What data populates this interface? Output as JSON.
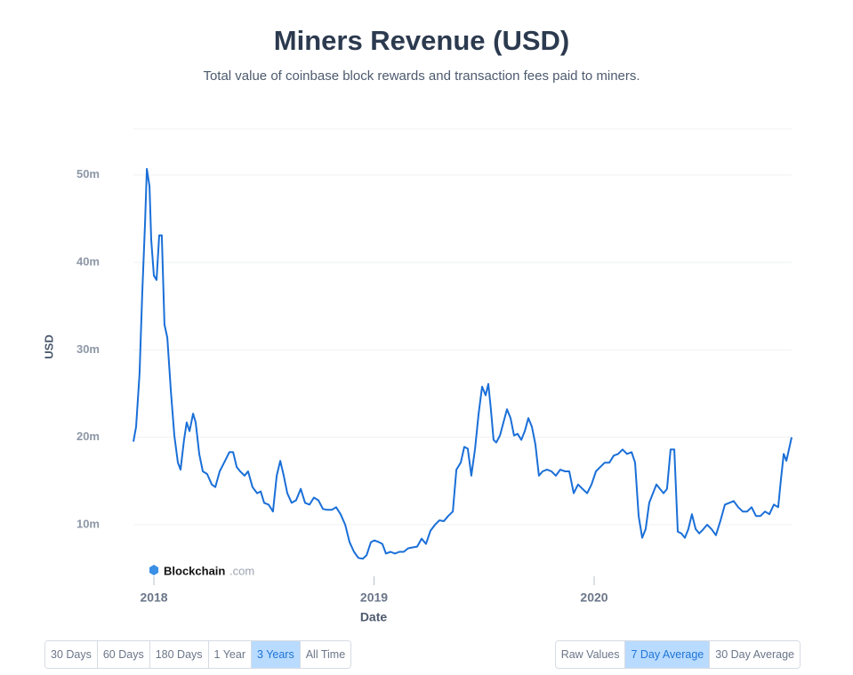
{
  "chart_data": {
    "type": "line",
    "title": "Miners Revenue (USD)",
    "subtitle": "Total value of coinbase block rewards and transaction fees paid to miners.",
    "y_label": "USD",
    "x_label": "Date",
    "watermark": [
      "Blockchain",
      ".com"
    ],
    "xlim": [
      2017.907,
      2020.897
    ],
    "xticks": [
      2018,
      2019,
      2020
    ],
    "ylim": [
      5420000,
      55270000
    ],
    "yticks": [
      {
        "value": 10000000,
        "label": "10m"
      },
      {
        "value": 20000000,
        "label": "20m"
      },
      {
        "value": 30000000,
        "label": "30m"
      },
      {
        "value": 40000000,
        "label": "40m"
      },
      {
        "value": 50000000,
        "label": "50m"
      }
    ],
    "grid": true,
    "x": [
      2017.907,
      2017.919,
      2017.935,
      2017.947,
      2017.96,
      2017.968,
      2017.98,
      2017.988,
      2018.0,
      2018.012,
      2018.024,
      2018.036,
      2018.048,
      2018.061,
      2018.077,
      2018.093,
      2018.109,
      2018.121,
      2018.137,
      2018.149,
      2018.162,
      2018.178,
      2018.19,
      2018.206,
      2018.222,
      2018.242,
      2018.263,
      2018.279,
      2018.299,
      2018.319,
      2018.343,
      2018.36,
      2018.376,
      2018.392,
      2018.412,
      2018.428,
      2018.448,
      2018.469,
      2018.485,
      2018.501,
      2018.521,
      2018.541,
      2018.558,
      2018.574,
      2018.59,
      2018.606,
      2018.626,
      2018.646,
      2018.667,
      2018.687,
      2018.707,
      2018.727,
      2018.747,
      2018.768,
      2018.788,
      2018.808,
      2018.828,
      2018.848,
      2018.869,
      2018.889,
      2018.909,
      2018.929,
      2018.949,
      2018.966,
      2018.986,
      2019.002,
      2019.022,
      2019.038,
      2019.054,
      2019.075,
      2019.095,
      2019.115,
      2019.135,
      2019.155,
      2019.176,
      2019.196,
      2019.216,
      2019.236,
      2019.256,
      2019.277,
      2019.297,
      2019.317,
      2019.337,
      2019.358,
      2019.374,
      2019.394,
      2019.41,
      2019.426,
      2019.442,
      2019.459,
      2019.475,
      2019.491,
      2019.507,
      2019.519,
      2019.531,
      2019.543,
      2019.555,
      2019.572,
      2019.588,
      2019.604,
      2019.62,
      2019.636,
      2019.652,
      2019.669,
      2019.685,
      2019.701,
      2019.717,
      2019.733,
      2019.749,
      2019.766,
      2019.786,
      2019.806,
      2019.826,
      2019.846,
      2019.867,
      2019.887,
      2019.907,
      2019.927,
      2019.947,
      2019.968,
      2019.988,
      2020.008,
      2020.028,
      2020.048,
      2020.069,
      2020.089,
      2020.109,
      2020.129,
      2020.149,
      2020.17,
      2020.186,
      2020.202,
      2020.218,
      2020.234,
      2020.25,
      2020.267,
      2020.283,
      2020.299,
      2020.315,
      2020.331,
      2020.347,
      2020.364,
      2020.38,
      2020.396,
      2020.412,
      2020.428,
      2020.444,
      2020.461,
      2020.477,
      2020.493,
      2020.513,
      2020.533,
      2020.553,
      2020.574,
      2020.594,
      2020.614,
      2020.634,
      2020.654,
      2020.675,
      2020.695,
      2020.715,
      2020.735,
      2020.755,
      2020.776,
      2020.796,
      2020.816,
      2020.836,
      2020.848,
      2020.861,
      2020.873,
      2020.885,
      2020.897
    ],
    "series": [
      {
        "name": "Miners Revenue",
        "color": "#1a6fd8",
        "values": [
          19500000,
          21200000,
          27300000,
          36400000,
          44600000,
          50700000,
          48700000,
          42600000,
          38500000,
          38000000,
          43100000,
          43100000,
          32900000,
          31400000,
          25300000,
          20200000,
          17100000,
          16300000,
          19700000,
          21700000,
          20700000,
          22700000,
          21700000,
          18100000,
          16100000,
          15800000,
          14600000,
          14300000,
          16100000,
          17100000,
          18300000,
          18300000,
          16600000,
          16100000,
          15600000,
          16100000,
          14300000,
          13600000,
          13800000,
          12500000,
          12300000,
          11500000,
          15600000,
          17300000,
          15600000,
          13600000,
          12500000,
          12800000,
          14100000,
          12500000,
          12300000,
          13100000,
          12800000,
          11800000,
          11700000,
          11700000,
          12000000,
          11200000,
          10000000,
          8000000,
          6900000,
          6200000,
          6100000,
          6500000,
          8000000,
          8200000,
          8000000,
          7800000,
          6700000,
          6900000,
          6700000,
          6900000,
          6900000,
          7300000,
          7400000,
          7500000,
          8400000,
          7800000,
          9300000,
          10000000,
          10500000,
          10400000,
          11000000,
          11500000,
          16300000,
          17100000,
          18900000,
          18700000,
          15600000,
          18700000,
          22700000,
          25800000,
          24800000,
          26100000,
          23200000,
          19700000,
          19400000,
          20200000,
          21700000,
          23200000,
          22200000,
          20200000,
          20400000,
          19700000,
          20700000,
          22200000,
          21200000,
          19200000,
          15600000,
          16100000,
          16300000,
          16100000,
          15600000,
          16300000,
          16100000,
          16100000,
          13600000,
          14600000,
          14100000,
          13600000,
          14600000,
          16100000,
          16600000,
          17100000,
          17100000,
          17900000,
          18100000,
          18600000,
          18100000,
          18300000,
          17100000,
          11000000,
          8500000,
          9500000,
          12500000,
          13600000,
          14600000,
          14100000,
          13600000,
          14100000,
          18600000,
          18600000,
          9200000,
          9000000,
          8500000,
          9500000,
          11200000,
          9500000,
          9000000,
          9400000,
          10000000,
          9500000,
          8800000,
          10500000,
          12300000,
          12500000,
          12700000,
          12000000,
          11500000,
          11500000,
          12000000,
          11000000,
          11000000,
          11500000,
          11200000,
          12300000,
          12000000,
          15100000,
          18100000,
          17300000,
          18600000,
          20000000
        ]
      }
    ]
  },
  "controls": {
    "ranges": [
      "30 Days",
      "60 Days",
      "180 Days",
      "1 Year",
      "3 Years",
      "All Time"
    ],
    "range_selected": 4,
    "averages": [
      "Raw Values",
      "7 Day Average",
      "30 Day Average"
    ],
    "average_selected": 1
  }
}
